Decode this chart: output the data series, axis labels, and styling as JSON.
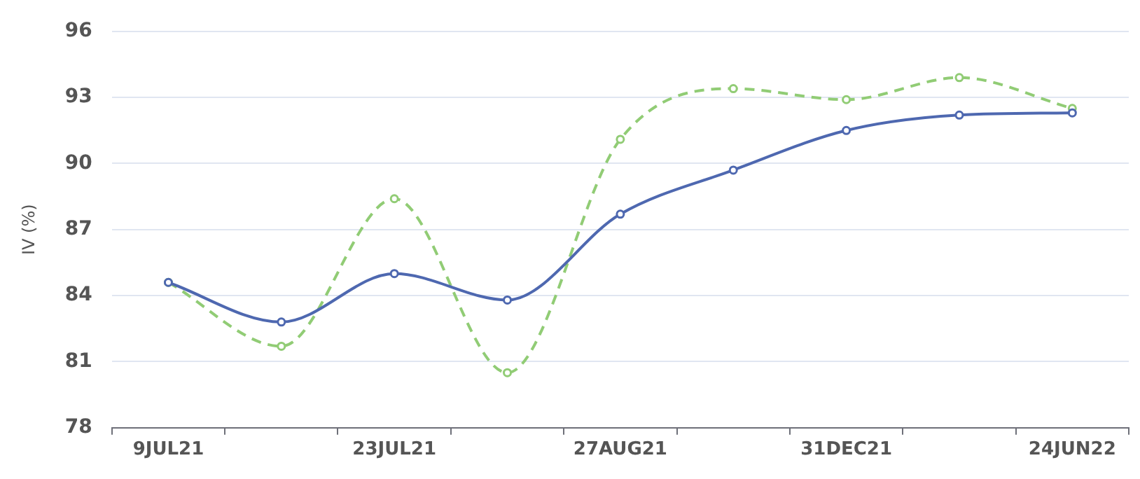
{
  "chart_data": {
    "type": "line",
    "ylabel": "IV (%)",
    "categories": [
      "9JUL21",
      null,
      "23JUL21",
      null,
      "27AUG21",
      null,
      "31DEC21",
      null,
      "24JUN22"
    ],
    "series": [
      {
        "color": "#4e68b0",
        "line_style": "solid",
        "values": [
          84.6,
          82.8,
          85.0,
          83.8,
          87.7,
          89.7,
          91.5,
          92.2,
          92.3
        ]
      },
      {
        "color": "#91cc75",
        "line_style": "dashed",
        "values": [
          84.6,
          81.7,
          88.4,
          80.5,
          91.1,
          93.4,
          92.9,
          93.9,
          92.5
        ]
      }
    ],
    "ylim": [
      78,
      96
    ],
    "yticks": [
      78,
      81,
      84,
      87,
      90,
      93,
      96
    ],
    "grid": "y",
    "legend": false,
    "marker": "circle"
  }
}
